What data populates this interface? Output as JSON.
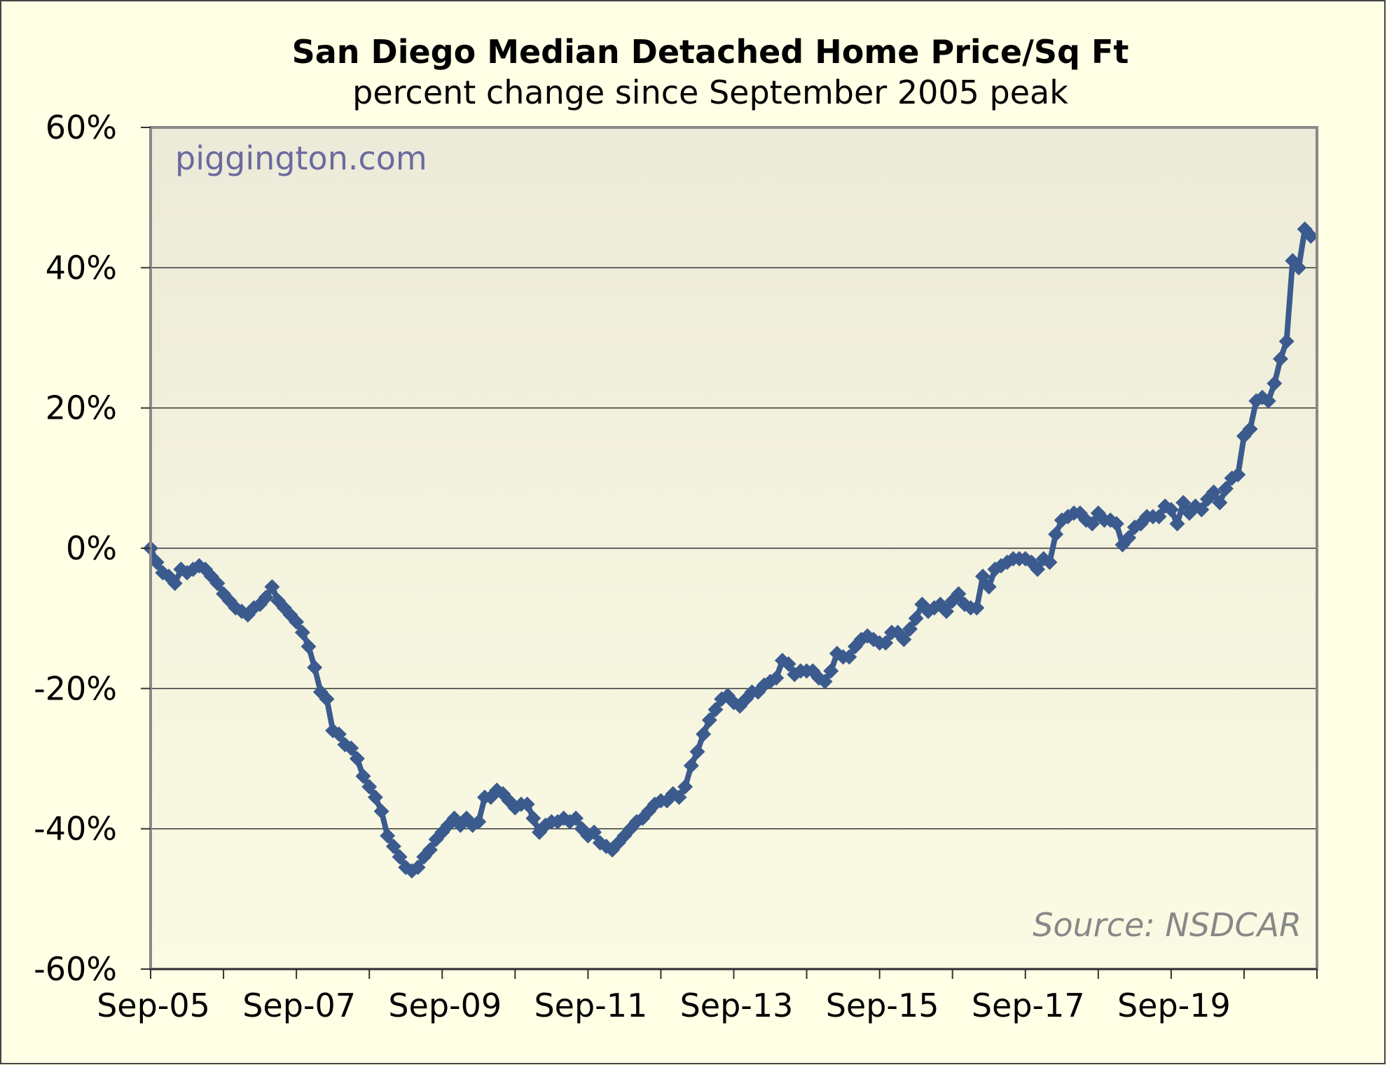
{
  "chart_data": {
    "type": "line",
    "title": "San Diego Median Detached Home Price/Sq Ft",
    "subtitle": "percent change since September 2005 peak",
    "watermark": "piggington.com",
    "source": "Source: NSDCAR",
    "xlabel": "",
    "ylabel": "",
    "x_unit": "months since Sep-05",
    "xlim": [
      0,
      192
    ],
    "ylim": [
      -60,
      60
    ],
    "y_ticks": [
      60,
      40,
      20,
      0,
      -20,
      -40,
      -60
    ],
    "y_tick_labels": [
      "60%",
      "40%",
      "20%",
      "0%",
      "-20%",
      "-40%",
      "-60%"
    ],
    "x_tick_labels": [
      "Sep-05",
      "Sep-07",
      "Sep-09",
      "Sep-11",
      "Sep-13",
      "Sep-15",
      "Sep-17",
      "Sep-19"
    ],
    "grid": true,
    "legend": "none",
    "colors": {
      "line": "#3b5b8e",
      "background": "#ffffe6",
      "watermark": "#6a6aa0",
      "source": "#888888"
    },
    "series": [
      {
        "name": "Price/Sq Ft % change",
        "values": [
          0,
          -2,
          -3.5,
          -4,
          -5,
          -3,
          -3.5,
          -3,
          -2.5,
          -3,
          -4,
          -5,
          -6.5,
          -7.5,
          -8.5,
          -9,
          -9.5,
          -8.5,
          -8,
          -7,
          -5.5,
          -7.5,
          -8.5,
          -9.5,
          -10.5,
          -12,
          -14,
          -17,
          -20.5,
          -21.5,
          -26,
          -26.5,
          -28,
          -28.5,
          -30,
          -32.5,
          -34,
          -35.5,
          -37.5,
          -41,
          -42.5,
          -44,
          -45.5,
          -46,
          -45.5,
          -44,
          -43,
          -41.5,
          -40.5,
          -39.5,
          -38.5,
          -39.5,
          -38.5,
          -39.5,
          -39,
          -35.5,
          -35.5,
          -34.5,
          -35,
          -36,
          -37,
          -36.5,
          -36.5,
          -38.5,
          -40.5,
          -39.5,
          -39,
          -39,
          -38.5,
          -39,
          -38.5,
          -40,
          -41,
          -40.5,
          -42,
          -42.5,
          -43,
          -42,
          -41,
          -40,
          -39,
          -38.5,
          -37.5,
          -36.5,
          -36,
          -36,
          -35,
          -35.5,
          -34,
          -31,
          -29,
          -26.5,
          -24.5,
          -23,
          -21.5,
          -21,
          -22,
          -22.5,
          -21.5,
          -20.5,
          -20.5,
          -19.5,
          -19,
          -18.5,
          -16,
          -16.5,
          -18,
          -17.5,
          -17.5,
          -17.5,
          -18.5,
          -19,
          -17.5,
          -15,
          -15.5,
          -15.5,
          -14,
          -13,
          -12.5,
          -13,
          -13.5,
          -13.5,
          -12,
          -12,
          -13,
          -11.5,
          -10,
          -8,
          -9,
          -8.5,
          -8,
          -9,
          -7.5,
          -6.5,
          -8,
          -8.5,
          -8.5,
          -4,
          -5.5,
          -3,
          -2.5,
          -2,
          -1.5,
          -1.5,
          -1.5,
          -2,
          -3,
          -1.5,
          -2,
          2,
          4,
          4.5,
          5,
          5,
          4,
          3.5,
          5,
          4,
          4,
          3.5,
          0.5,
          1.5,
          3,
          3.5,
          4.5,
          4.5,
          4.5,
          6,
          5.5,
          3.5,
          6.5,
          5,
          6,
          5.5,
          7,
          8,
          6.5,
          8.5,
          10,
          10.5,
          16,
          17,
          21,
          21.5,
          21,
          23.5,
          27,
          29.5,
          41,
          40,
          45.5,
          44.5
        ]
      }
    ]
  }
}
